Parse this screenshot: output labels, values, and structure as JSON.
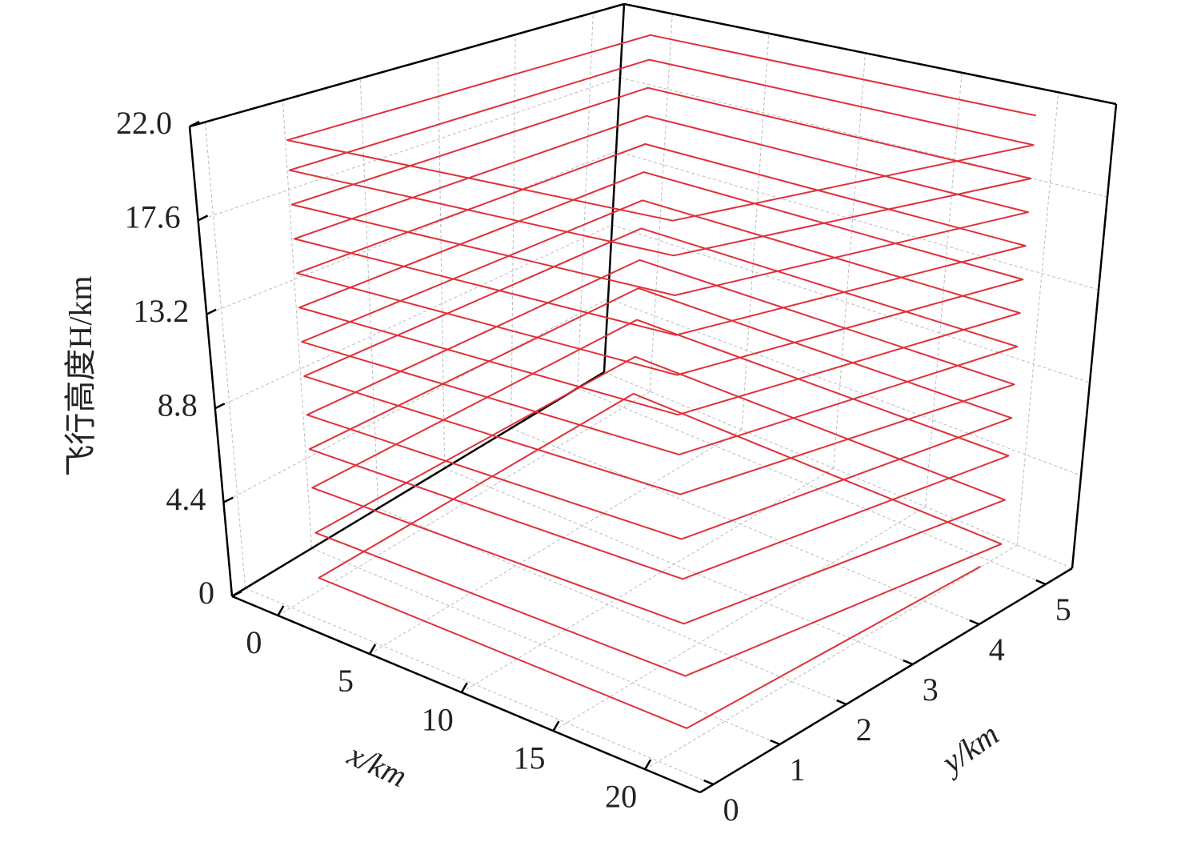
{
  "chart_data": {
    "type": "line3d",
    "xlabel": "x/km",
    "ylabel": "y/km",
    "zlabel": "飞行高度H/km",
    "xlim": [
      -2.5,
      23
    ],
    "ylim": [
      -0.2,
      5.4
    ],
    "zlim": [
      0,
      22
    ],
    "xticks": [
      0,
      5,
      10,
      15,
      20
    ],
    "yticks": [
      0,
      1,
      2,
      3,
      4,
      5
    ],
    "zticks": [
      0,
      4.4,
      8.8,
      13.2,
      17.6,
      {
        "value": 22,
        "label": "22.0"
      }
    ],
    "grid": true,
    "series": [
      {
        "color": "#e0303a",
        "x": [
          20.5,
          20.5,
          0.5,
          0.5,
          20.5,
          20.5,
          0.5,
          0.5,
          20.5,
          20.5,
          0.5,
          0.5,
          20.5,
          20.5,
          0.5,
          0.5,
          20.5,
          20.5,
          0.5,
          0.5,
          20.5,
          20.5,
          0.5,
          0.5,
          20.5,
          20.5,
          0.5,
          0.5,
          20.5,
          20.5,
          0.5,
          0.5,
          20.5,
          20.5,
          0.5,
          0.5,
          20.5,
          20.5,
          0.5,
          0.5,
          20.5,
          20.5,
          0.5,
          0.5,
          20.5,
          20.5,
          0.5,
          0.5,
          20.5,
          20.5,
          0.5,
          0.5,
          20.5
        ],
        "y": [
          4.7,
          0.3,
          0.3,
          5,
          5,
          0.3,
          0.3,
          5,
          5,
          0.3,
          0.3,
          5,
          5,
          0.3,
          0.3,
          5,
          5,
          0.3,
          0.3,
          5,
          5,
          0.3,
          0.3,
          5,
          5,
          0.3,
          0.3,
          5,
          5,
          0.3,
          0.3,
          5,
          5,
          0.3,
          0.3,
          5,
          5,
          0.3,
          0.3,
          5,
          5,
          0.3,
          0.3,
          5,
          5,
          0.3,
          0.3,
          5,
          5,
          0.3,
          0.3,
          5,
          5
        ],
        "z": [
          0.5,
          1.0,
          1.0,
          1.0,
          1.0,
          3.1,
          3.1,
          3.1,
          3.1,
          5.2,
          5.2,
          5.2,
          5.2,
          7.0,
          7.0,
          7.0,
          7.0,
          8.6,
          8.6,
          8.6,
          8.6,
          10.4,
          10.4,
          10.4,
          10.4,
          12.0,
          12.0,
          12.0,
          12.0,
          13.6,
          13.6,
          13.6,
          13.6,
          15.2,
          15.2,
          15.2,
          15.2,
          16.8,
          16.8,
          16.8,
          16.8,
          18.4,
          18.4,
          18.4,
          18.4,
          20.0,
          20.0,
          20.0,
          20.0,
          21.4,
          21.4,
          21.4,
          21.4
        ]
      }
    ]
  }
}
